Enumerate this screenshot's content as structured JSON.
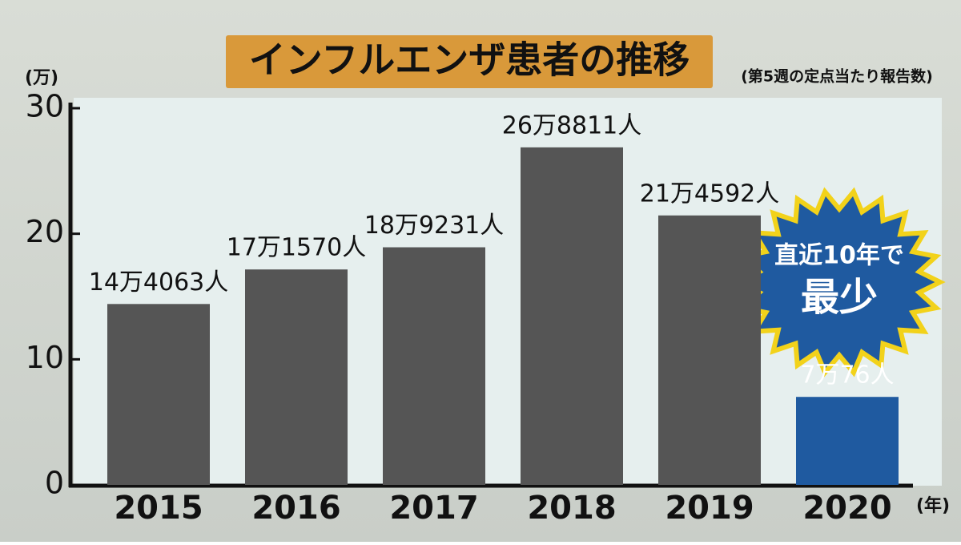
{
  "chart_data": {
    "type": "bar",
    "title": "インフルエンザ患者の推移",
    "subtitle": "(第5週の定点当たり報告数)",
    "y_label": "(万)",
    "x_label": "(年)",
    "annotation": [
      "直近10年で",
      "最少"
    ],
    "categories": [
      "2015",
      "2016",
      "2017",
      "2018",
      "2019",
      "2020"
    ],
    "values": [
      14.4063,
      17.157,
      18.9231,
      26.8811,
      21.4592,
      7.0076
    ],
    "value_labels": [
      "14万4063人",
      "17万1570人",
      "18万9231人",
      "26万8811人",
      "21万4592人",
      "7万76人"
    ],
    "colors": [
      "#555555",
      "#555555",
      "#555555",
      "#555555",
      "#555555",
      "#1f5aa0"
    ],
    "label_colors": [
      "#111111",
      "#111111",
      "#111111",
      "#111111",
      "#111111",
      "#ffffff"
    ],
    "ylim": [
      0,
      30
    ],
    "yticks": [
      0,
      10,
      20,
      30
    ],
    "grid": false
  }
}
